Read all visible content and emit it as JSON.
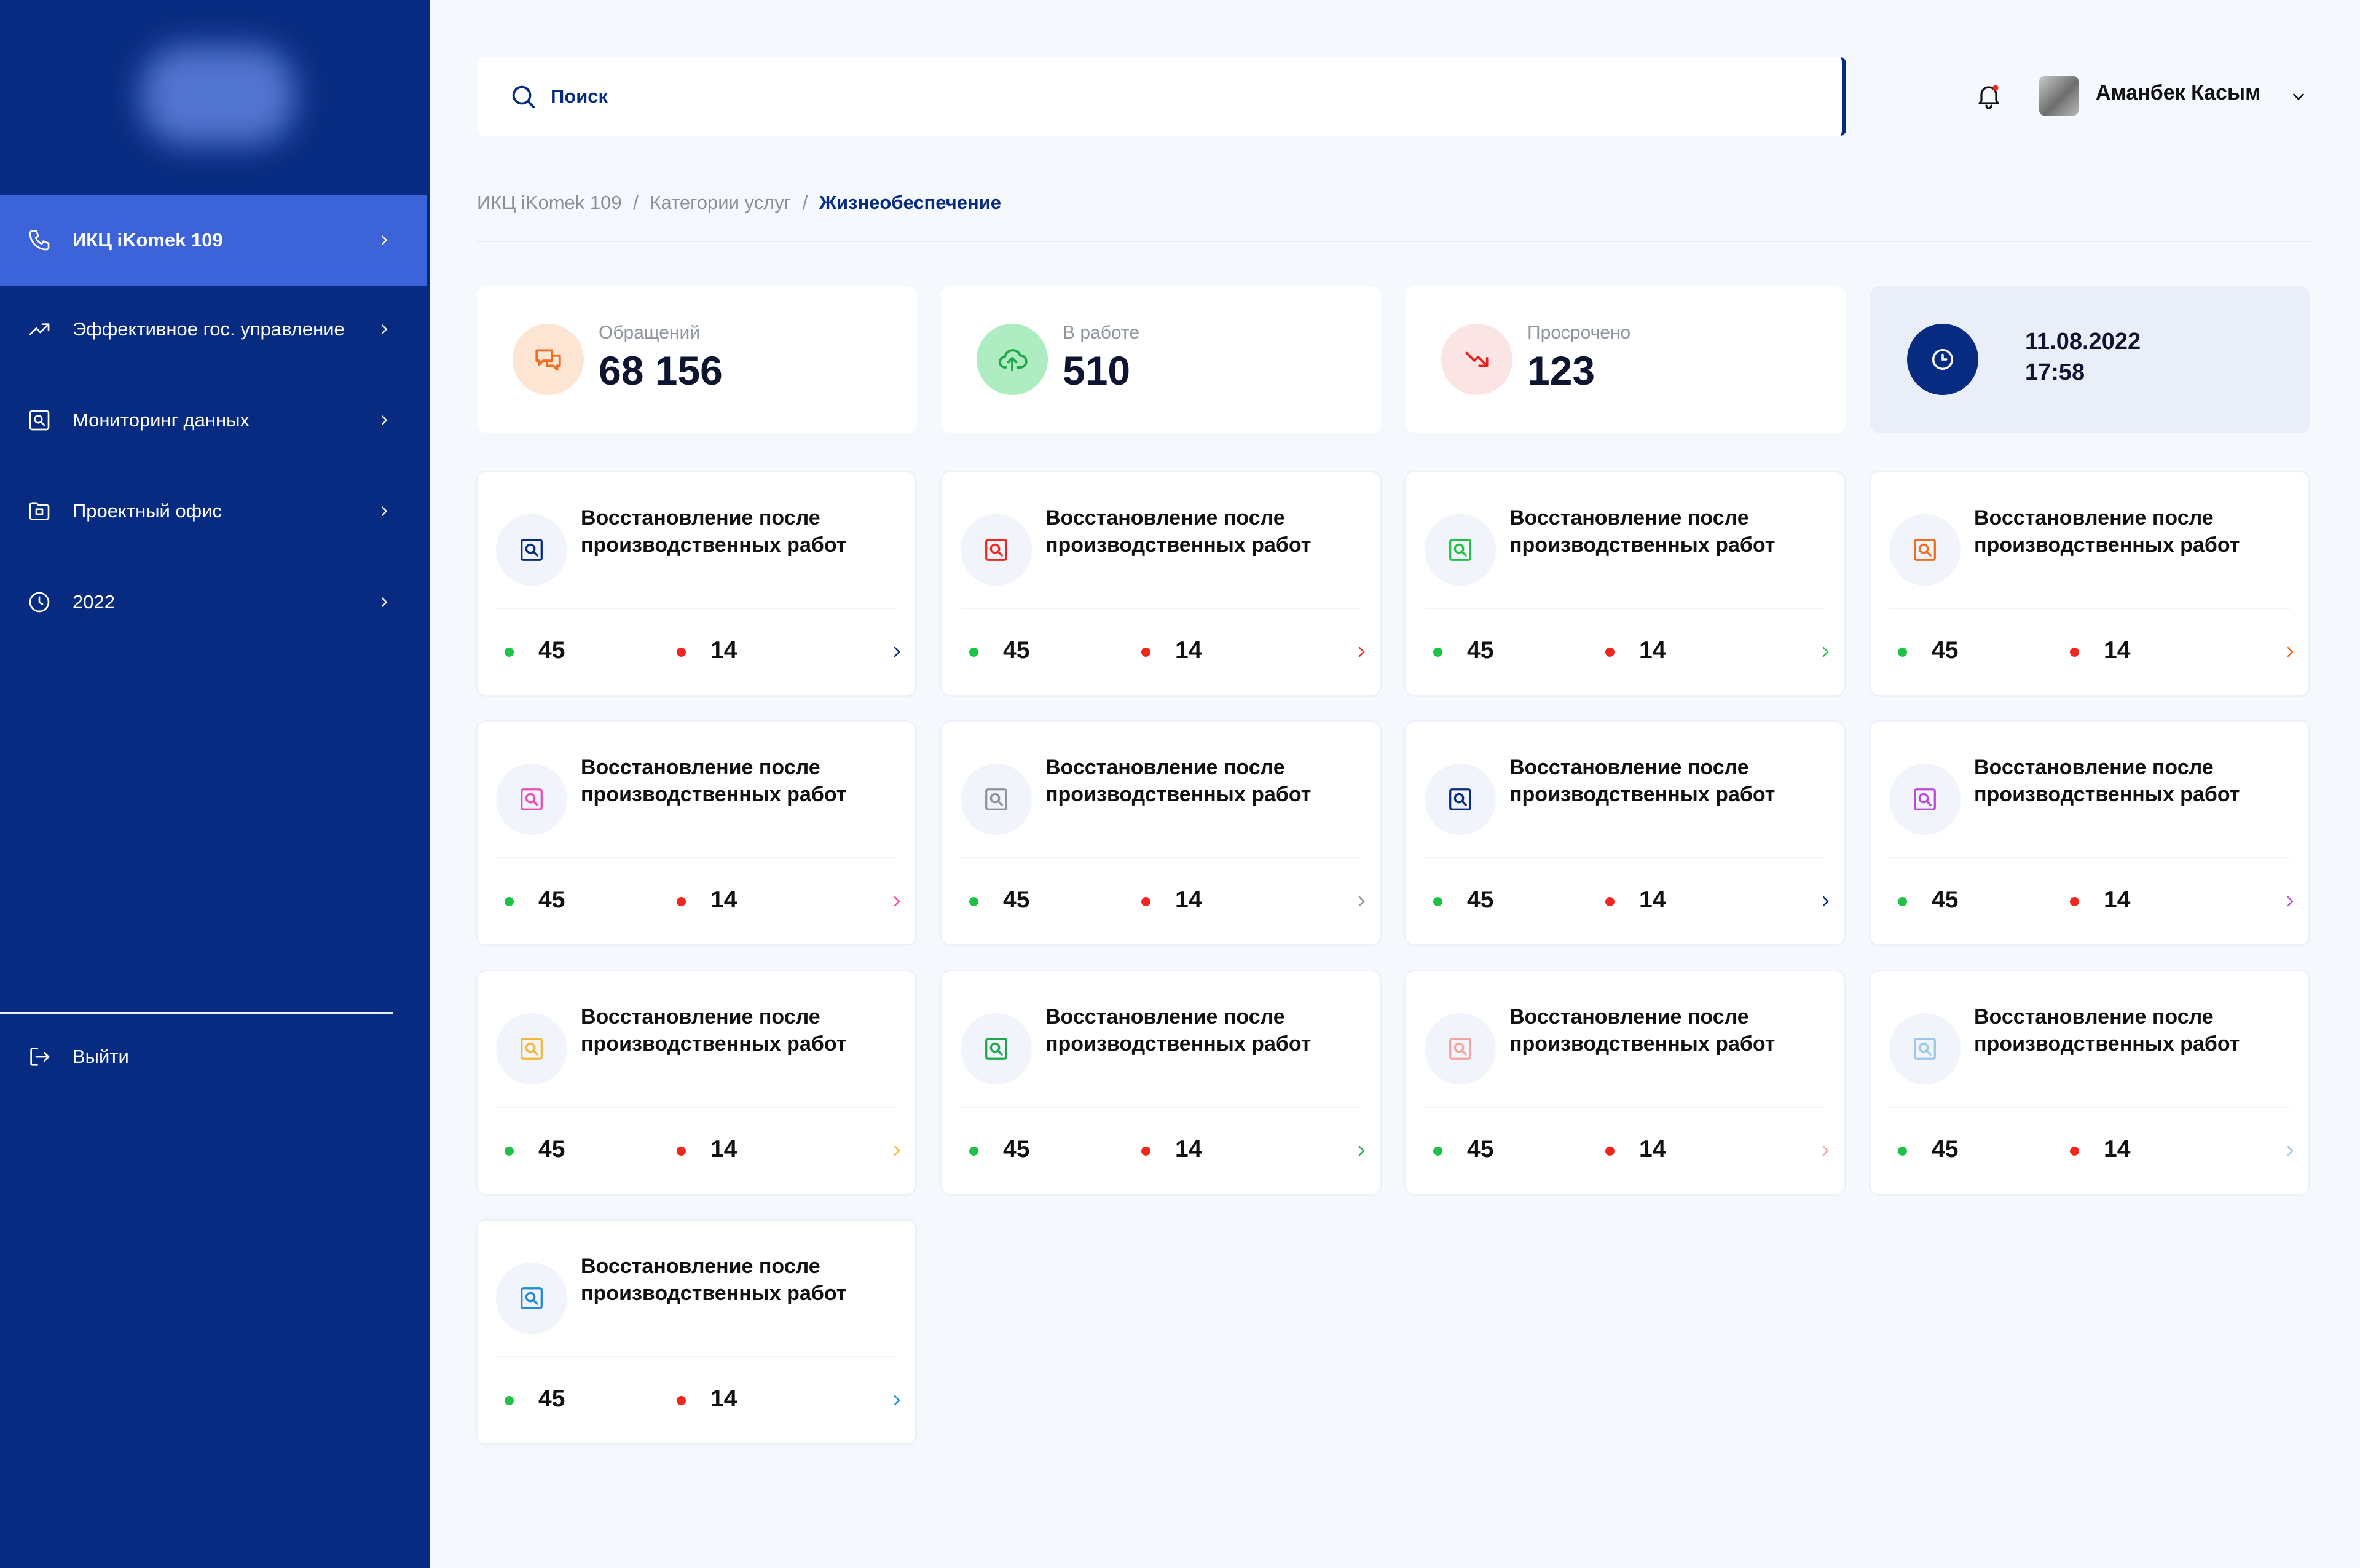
{
  "sidebar": {
    "items": [
      {
        "label": "ИКЦ iKomek 109",
        "icon": "phone-icon",
        "active": true
      },
      {
        "label": "Эффективное гос. управление",
        "icon": "trend-up-icon",
        "active": false
      },
      {
        "label": "Мониторинг данных",
        "icon": "monitoring-icon",
        "active": false
      },
      {
        "label": "Проектный офис",
        "icon": "folder-icon",
        "active": false
      },
      {
        "label": "2022",
        "icon": "clock-icon",
        "active": false
      }
    ],
    "logout_label": "Выйти"
  },
  "header": {
    "search_placeholder": "Поиск",
    "user_name": "Аманбек Касым"
  },
  "breadcrumb": {
    "items": [
      "ИКЦ iKomek 109",
      "Категории услуг",
      "Жизнеобеспечение"
    ],
    "separator": "/"
  },
  "stats": [
    {
      "label": "Обращений",
      "value": "68 156",
      "icon": "chat-icon",
      "color": "#f26b21",
      "bg": "#fde5d4"
    },
    {
      "label": "В работе",
      "value": "510",
      "icon": "cloud-upload-icon",
      "color": "#1fa84a",
      "bg": "#aeecc1"
    },
    {
      "label": "Просрочено",
      "value": "123",
      "icon": "trend-down-icon",
      "color": "#e5231b",
      "bg": "#fbe5e4"
    }
  ],
  "datetime": {
    "date": "11.08.2022",
    "time": "17:58"
  },
  "cards": [
    {
      "title": "Восстановление после производственных работ",
      "green": "45",
      "red": "14",
      "color": "#072b80"
    },
    {
      "title": "Восстановление после производственных работ",
      "green": "45",
      "red": "14",
      "color": "#f0261f"
    },
    {
      "title": "Восстановление после производственных работ",
      "green": "45",
      "red": "14",
      "color": "#1fc247"
    },
    {
      "title": "Восстановление после производственных работ",
      "green": "45",
      "red": "14",
      "color": "#f26b21"
    },
    {
      "title": "Восстановление после производственных работ",
      "green": "45",
      "red": "14",
      "color": "#ef4ab0"
    },
    {
      "title": "Восстановление после производственных работ",
      "green": "45",
      "red": "14",
      "color": "#8e939b"
    },
    {
      "title": "Восстановление после производственных работ",
      "green": "45",
      "red": "14",
      "color": "#072b80"
    },
    {
      "title": "Восстановление после производственных работ",
      "green": "45",
      "red": "14",
      "color": "#b94ad9"
    },
    {
      "title": "Восстановление после производственных работ",
      "green": "45",
      "red": "14",
      "color": "#f2b936"
    },
    {
      "title": "Восстановление после производственных работ",
      "green": "45",
      "red": "14",
      "color": "#1fa84a"
    },
    {
      "title": "Восстановление после производственных работ",
      "green": "45",
      "red": "14",
      "color": "#f3a3a0"
    },
    {
      "title": "Восстановление после производственных работ",
      "green": "45",
      "red": "14",
      "color": "#9cc7e6"
    },
    {
      "title": "Восстановление после производственных работ",
      "green": "45",
      "red": "14",
      "color": "#1f8ad9"
    }
  ]
}
